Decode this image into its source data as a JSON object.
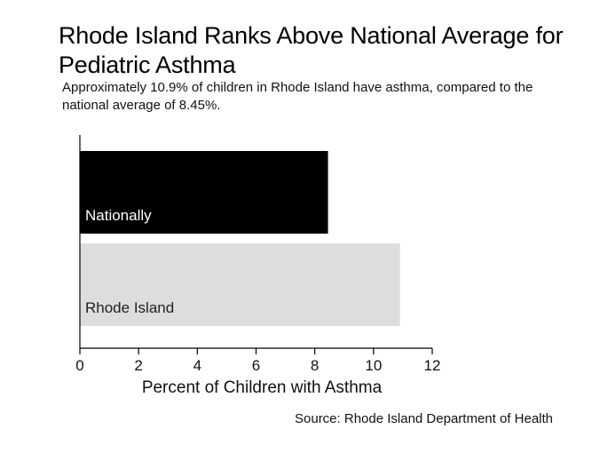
{
  "chart_data": {
    "type": "bar",
    "orientation": "horizontal",
    "title": "Rhode Island Ranks Above National Average for Pediatric Asthma",
    "subtitle": "Approximately 10.9% of children in Rhode Island have asthma, compared to the national average of 8.45%.",
    "categories": [
      "Nationally",
      "Rhode Island"
    ],
    "values": [
      8.45,
      10.9
    ],
    "bar_colors": [
      "#000000",
      "#dddddd"
    ],
    "label_colors": [
      "#ffffff",
      "#222222"
    ],
    "xlabel": "Percent of Children with Asthma",
    "xlim": [
      0,
      12
    ],
    "xticks": [
      0,
      2,
      4,
      6,
      8,
      10,
      12
    ],
    "grid": false,
    "source": "Source: Rhode Island Department of Health"
  }
}
